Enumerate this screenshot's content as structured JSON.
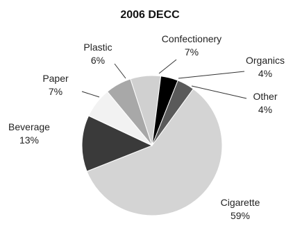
{
  "chart_data": {
    "type": "pie",
    "title": "2006 DECC",
    "slices": [
      {
        "label": "Confectionery",
        "value": 7,
        "value_label": "7%",
        "color": "#d0d0d0"
      },
      {
        "label": "Organics",
        "value": 4,
        "value_label": "4%",
        "color": "#000000"
      },
      {
        "label": "Other",
        "value": 4,
        "value_label": "4%",
        "color": "#5a5a5a"
      },
      {
        "label": "Cigarette",
        "value": 59,
        "value_label": "59%",
        "color": "#d4d4d4"
      },
      {
        "label": "Beverage",
        "value": 13,
        "value_label": "13%",
        "color": "#3a3a3a"
      },
      {
        "label": "Paper",
        "value": 7,
        "value_label": "7%",
        "color": "#f2f2f2"
      },
      {
        "label": "Plastic",
        "value": 6,
        "value_label": "6%",
        "color": "#a8a8a8"
      }
    ]
  }
}
